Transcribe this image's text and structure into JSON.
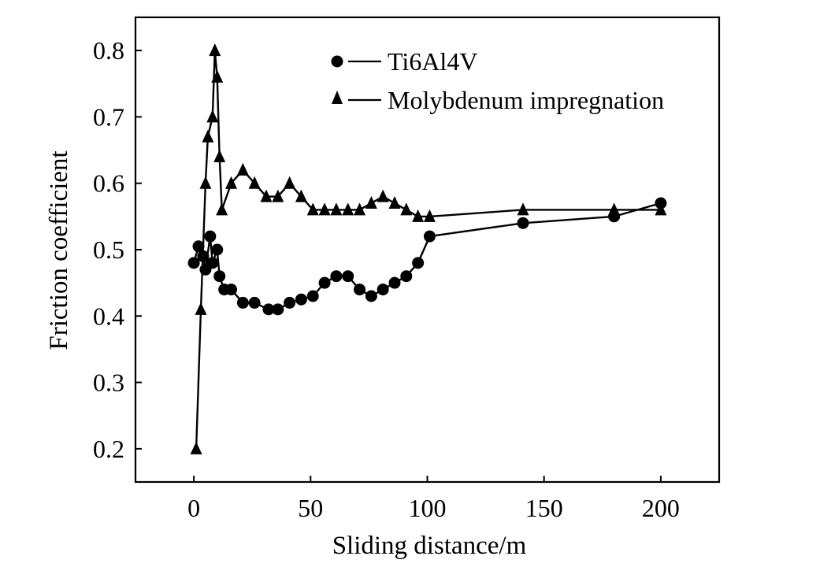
{
  "chart_data": {
    "type": "line",
    "xlabel": "Sliding distance/m",
    "ylabel": "Friction coefficient",
    "xlim": [
      -25,
      225
    ],
    "ylim": [
      0.15,
      0.85
    ],
    "x_ticks": [
      0,
      50,
      100,
      150,
      200
    ],
    "x_tick_labels": [
      "0",
      "50",
      "100",
      "150",
      "200"
    ],
    "y_ticks": [
      0.2,
      0.3,
      0.4,
      0.5,
      0.6,
      0.7,
      0.8
    ],
    "y_tick_labels": [
      "0.2",
      "0.3",
      "0.4",
      "0.5",
      "0.6",
      "0.7",
      "0.8"
    ],
    "grid": false,
    "legend_position": "top-right",
    "series": [
      {
        "name": "Ti6Al4V",
        "marker": "circle",
        "color": "#000000",
        "x": [
          0,
          2,
          4,
          5,
          7,
          8,
          10,
          11,
          13,
          16,
          21,
          26,
          32,
          36,
          41,
          46,
          51,
          56,
          61,
          66,
          71,
          76,
          81,
          86,
          91,
          96,
          101,
          141,
          180,
          200
        ],
        "y": [
          0.48,
          0.505,
          0.49,
          0.47,
          0.52,
          0.48,
          0.5,
          0.46,
          0.44,
          0.44,
          0.42,
          0.42,
          0.41,
          0.41,
          0.42,
          0.425,
          0.43,
          0.45,
          0.46,
          0.46,
          0.44,
          0.43,
          0.44,
          0.45,
          0.46,
          0.48,
          0.52,
          0.54,
          0.55,
          0.57
        ]
      },
      {
        "name": "Molybdenum impregnation",
        "marker": "triangle",
        "color": "#000000",
        "x": [
          1,
          3,
          5,
          6,
          8,
          9,
          10,
          11,
          12,
          16,
          21,
          26,
          31,
          36,
          41,
          46,
          51,
          56,
          61,
          66,
          71,
          76,
          81,
          86,
          91,
          96,
          101,
          141,
          180,
          200
        ],
        "y": [
          0.2,
          0.41,
          0.6,
          0.67,
          0.7,
          0.8,
          0.76,
          0.64,
          0.56,
          0.6,
          0.62,
          0.6,
          0.58,
          0.58,
          0.6,
          0.58,
          0.56,
          0.56,
          0.56,
          0.56,
          0.56,
          0.57,
          0.58,
          0.57,
          0.56,
          0.55,
          0.55,
          0.56,
          0.56,
          0.56
        ]
      }
    ]
  }
}
